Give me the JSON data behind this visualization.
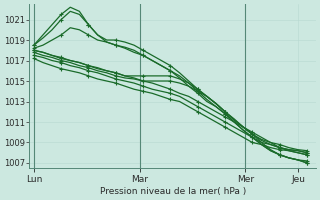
{
  "xlabel": "Pression niveau de la mer( hPa )",
  "bg_color": "#cce8e0",
  "grid_color_minor": "#b8d8d0",
  "grid_color_major": "#99c4bb",
  "line_color": "#1a6b2a",
  "ylim": [
    1006.5,
    1022.5
  ],
  "yticks": [
    1007,
    1009,
    1011,
    1013,
    1015,
    1017,
    1019,
    1021
  ],
  "day_labels": [
    "Lun",
    "Mar",
    "Mar",
    "Mer",
    "Mer",
    "Jeu"
  ],
  "day_positions": [
    0,
    24,
    48,
    72,
    96,
    120
  ],
  "xlim": [
    -2,
    128
  ],
  "vlines": [
    0,
    48,
    96
  ],
  "series": [
    [
      1018.5,
      1019.5,
      1020.5,
      1021.5,
      1022.2,
      1021.8,
      1020.5,
      1019.5,
      1019.0,
      1019.0,
      1018.8,
      1018.5,
      1018.0,
      1017.5,
      1017.0,
      1016.5,
      1015.8,
      1015.0,
      1014.2,
      1013.5,
      1012.8,
      1012.0,
      1011.2,
      1010.5,
      1009.8,
      1009.0,
      1008.3,
      1007.8,
      1007.5,
      1007.3,
      1007.2
    ],
    [
      1018.5,
      1019.2,
      1020.0,
      1021.0,
      1021.8,
      1021.5,
      1020.5,
      1019.5,
      1018.8,
      1018.5,
      1018.3,
      1018.0,
      1017.5,
      1017.0,
      1016.5,
      1016.0,
      1015.3,
      1014.5,
      1013.8,
      1013.0,
      1012.5,
      1011.8,
      1011.0,
      1010.2,
      1009.5,
      1008.8,
      1008.2,
      1007.8,
      1007.5,
      1007.3,
      1007.0
    ],
    [
      1018.2,
      1018.5,
      1019.0,
      1019.5,
      1020.2,
      1020.0,
      1019.5,
      1019.0,
      1018.8,
      1018.5,
      1018.2,
      1017.8,
      1017.5,
      1017.0,
      1016.5,
      1016.0,
      1015.5,
      1014.8,
      1014.0,
      1013.2,
      1012.5,
      1011.8,
      1011.0,
      1010.2,
      1009.5,
      1008.8,
      1008.2,
      1007.8,
      1007.5,
      1007.3,
      1007.0
    ],
    [
      1018.0,
      1017.8,
      1017.5,
      1017.3,
      1017.0,
      1016.8,
      1016.5,
      1016.3,
      1016.0,
      1015.8,
      1015.5,
      1015.3,
      1015.0,
      1014.8,
      1014.5,
      1014.2,
      1013.8,
      1013.5,
      1013.0,
      1012.5,
      1012.0,
      1011.5,
      1011.0,
      1010.5,
      1010.0,
      1009.5,
      1009.0,
      1008.5,
      1008.2,
      1008.0,
      1007.8
    ],
    [
      1018.0,
      1017.8,
      1017.5,
      1017.2,
      1017.0,
      1016.8,
      1016.5,
      1016.2,
      1016.0,
      1015.8,
      1015.5,
      1015.5,
      1015.5,
      1015.5,
      1015.5,
      1015.5,
      1015.2,
      1014.8,
      1014.2,
      1013.5,
      1012.8,
      1012.0,
      1011.2,
      1010.5,
      1009.8,
      1009.2,
      1008.8,
      1008.5,
      1008.3,
      1008.2,
      1008.0
    ],
    [
      1017.8,
      1017.5,
      1017.3,
      1017.0,
      1016.8,
      1016.5,
      1016.3,
      1016.0,
      1015.8,
      1015.5,
      1015.3,
      1015.2,
      1015.0,
      1015.0,
      1015.0,
      1015.0,
      1014.8,
      1014.5,
      1014.0,
      1013.5,
      1012.8,
      1012.0,
      1011.3,
      1010.5,
      1009.8,
      1009.3,
      1009.0,
      1008.8,
      1008.5,
      1008.3,
      1008.2
    ],
    [
      1017.5,
      1017.3,
      1017.0,
      1016.8,
      1016.5,
      1016.3,
      1016.0,
      1015.8,
      1015.5,
      1015.2,
      1015.0,
      1014.8,
      1014.5,
      1014.2,
      1014.0,
      1013.8,
      1013.5,
      1013.0,
      1012.5,
      1012.0,
      1011.5,
      1011.0,
      1010.5,
      1010.0,
      1009.5,
      1009.0,
      1008.8,
      1008.5,
      1008.3,
      1008.2,
      1008.0
    ],
    [
      1017.2,
      1016.8,
      1016.5,
      1016.2,
      1016.0,
      1015.8,
      1015.5,
      1015.2,
      1015.0,
      1014.8,
      1014.5,
      1014.2,
      1014.0,
      1013.8,
      1013.5,
      1013.2,
      1013.0,
      1012.5,
      1012.0,
      1011.5,
      1011.0,
      1010.5,
      1010.0,
      1009.5,
      1009.0,
      1008.8,
      1008.5,
      1008.3,
      1008.2,
      1008.0,
      1007.8
    ]
  ]
}
